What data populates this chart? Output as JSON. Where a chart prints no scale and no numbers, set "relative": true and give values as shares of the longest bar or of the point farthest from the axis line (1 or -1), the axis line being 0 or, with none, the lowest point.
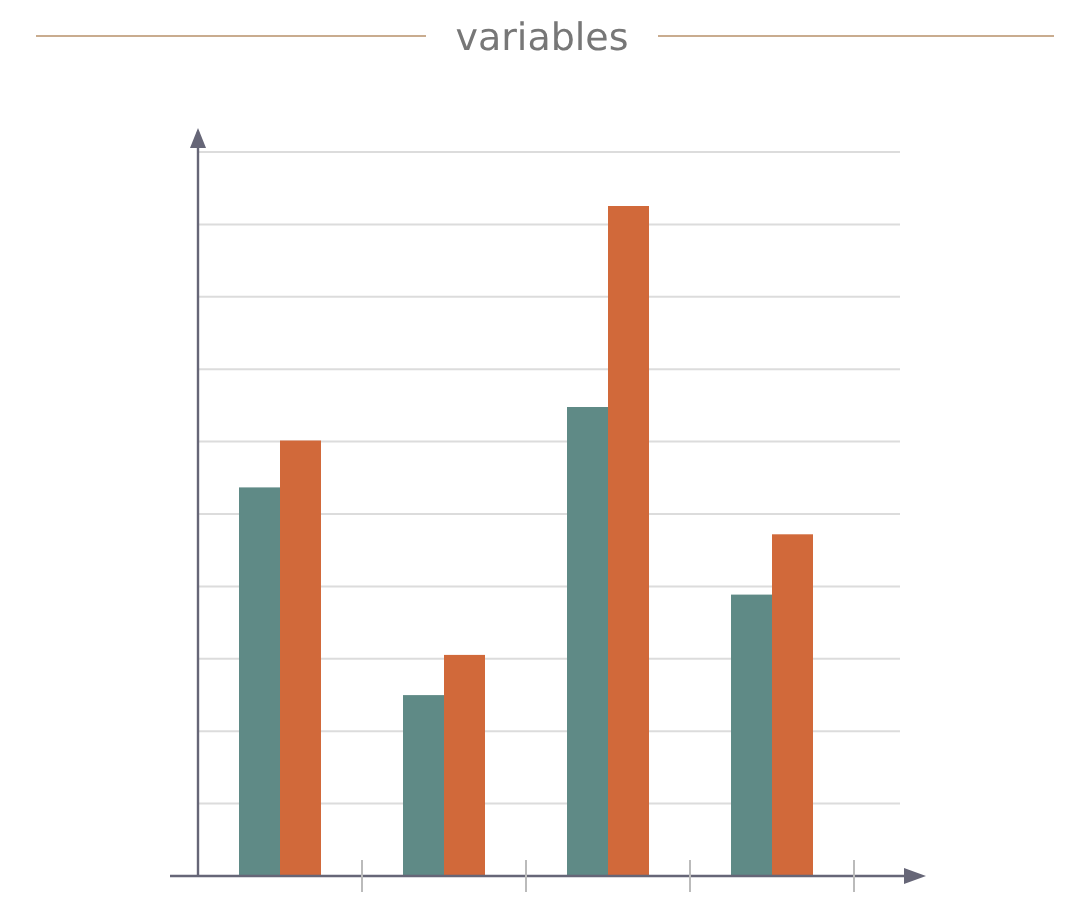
{
  "chart_data": {
    "type": "bar",
    "title": "variables",
    "relative": true,
    "categories": [
      null,
      null,
      null,
      null
    ],
    "series": [
      {
        "color": "#5f8a86",
        "values": [
          0.58,
          0.27,
          0.7,
          0.42
        ]
      },
      {
        "color": "#d1693a",
        "values": [
          0.65,
          0.33,
          1,
          0.51
        ]
      }
    ],
    "grid": "y"
  }
}
